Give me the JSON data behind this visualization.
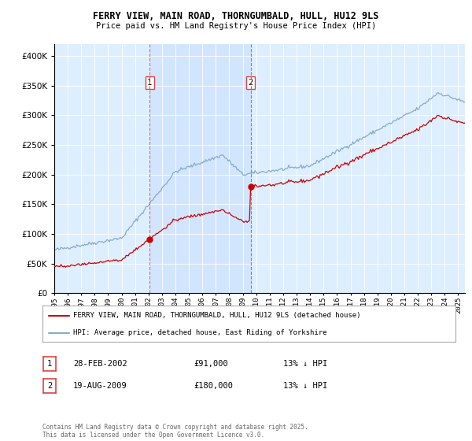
{
  "title_line1": "FERRY VIEW, MAIN ROAD, THORNGUMBALD, HULL, HU12 9LS",
  "title_line2": "Price paid vs. HM Land Registry's House Price Index (HPI)",
  "legend_line1": "FERRY VIEW, MAIN ROAD, THORNGUMBALD, HULL, HU12 9LS (detached house)",
  "legend_line2": "HPI: Average price, detached house, East Riding of Yorkshire",
  "footer": "Contains HM Land Registry data © Crown copyright and database right 2025.\nThis data is licensed under the Open Government Licence v3.0.",
  "transaction1_date": "28-FEB-2002",
  "transaction1_price": "£91,000",
  "transaction1_hpi": "13% ↓ HPI",
  "transaction2_date": "19-AUG-2009",
  "transaction2_price": "£180,000",
  "transaction2_hpi": "13% ↓ HPI",
  "ylim": [
    0,
    420000
  ],
  "yticks": [
    0,
    50000,
    100000,
    150000,
    200000,
    250000,
    300000,
    350000,
    400000
  ],
  "background_color": "#ddeeff",
  "red_color": "#cc0000",
  "blue_color": "#88aacc",
  "vline_color": "#dd4444",
  "shade_color": "#cce0ff"
}
